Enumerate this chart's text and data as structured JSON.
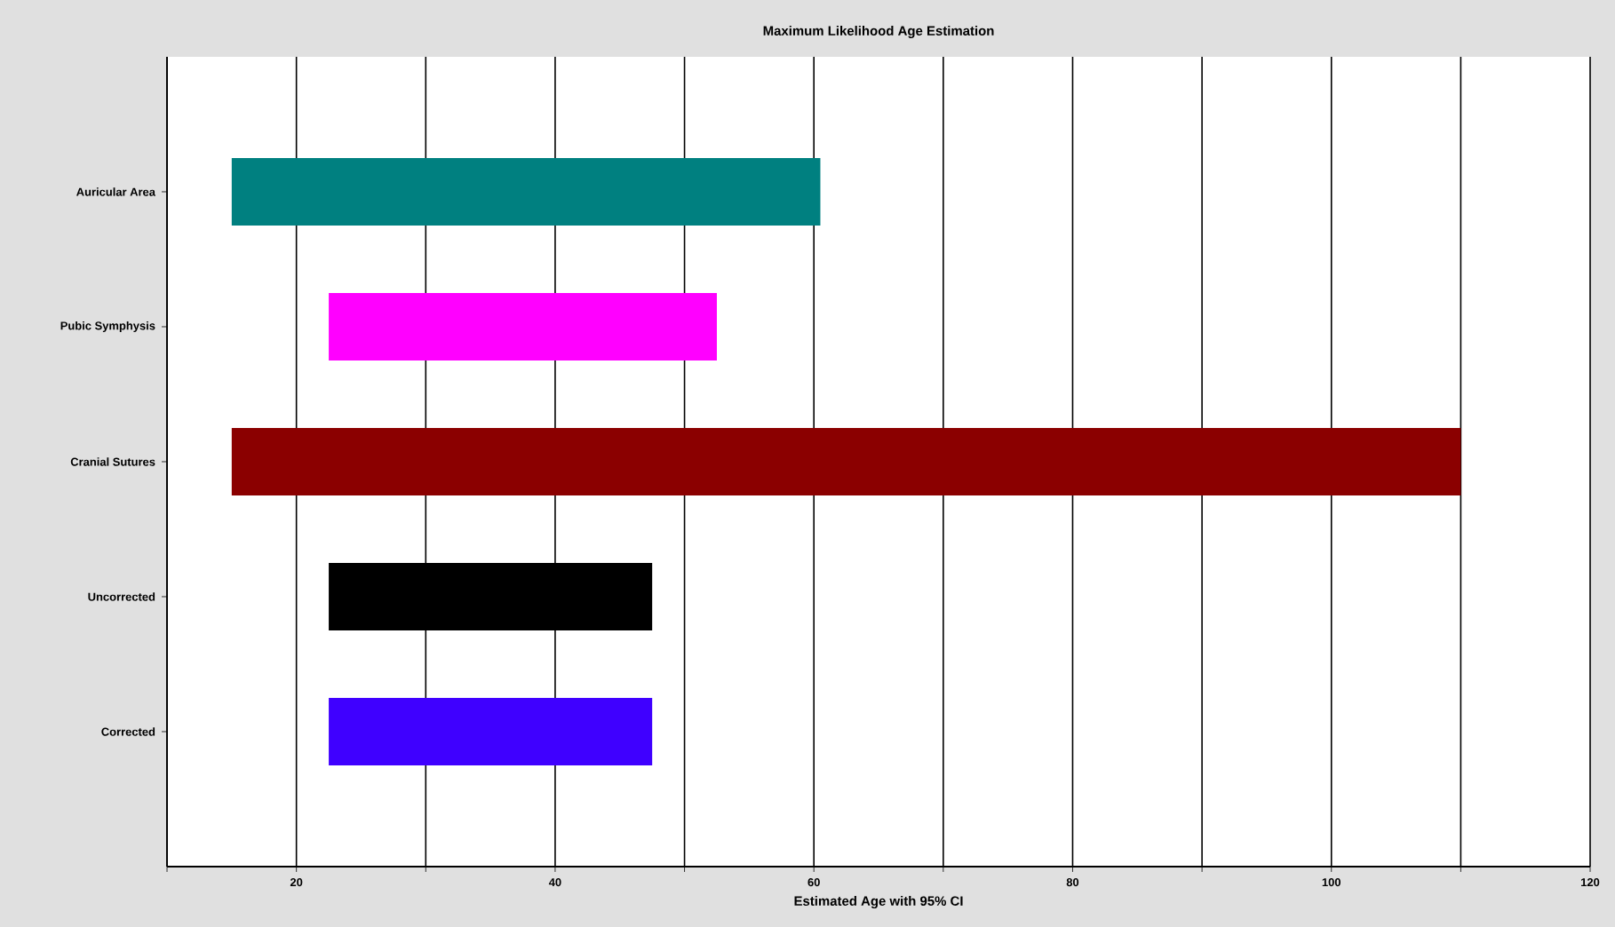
{
  "chart_data": {
    "type": "bar",
    "orientation": "horizontal",
    "title": "Maximum Likelihood Age Estimation",
    "xlabel": "Estimated Age with 95% CI",
    "categories": [
      "Auricular Area",
      "Pubic Symphysis",
      "Cranial Sutures",
      "Uncorrected",
      "Corrected"
    ],
    "base": [
      15,
      22.5,
      15,
      22.5,
      22.5
    ],
    "values": [
      45.5,
      30,
      95,
      25,
      25
    ],
    "colors": [
      "#008080",
      "#ff00ff",
      "#8b0000",
      "#000000",
      "#3f00ff"
    ],
    "xlim": [
      10,
      120
    ],
    "xticks": [
      {
        "value": 10,
        "label": null
      },
      20,
      {
        "value": 30,
        "label": null
      },
      40,
      {
        "value": 50,
        "label": null
      },
      60,
      {
        "value": 70,
        "label": null
      },
      80,
      {
        "value": 90,
        "label": null
      },
      100,
      {
        "value": 110,
        "label": null
      },
      120
    ],
    "grid": "x"
  }
}
